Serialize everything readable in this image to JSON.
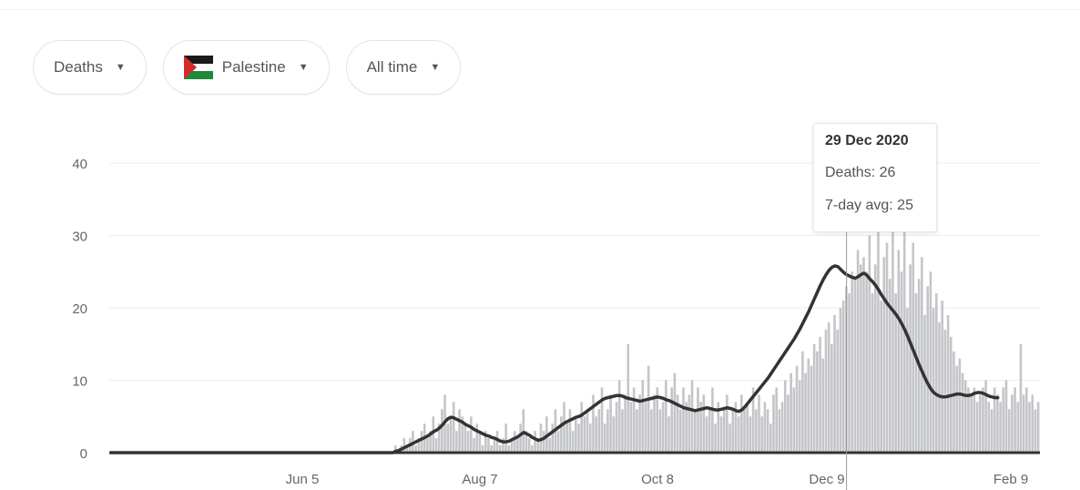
{
  "controls": {
    "metric": "Deaths",
    "location": "Palestine",
    "timerange": "All time"
  },
  "tooltip": {
    "date": "29 Dec 2020",
    "deaths_label": "Deaths:",
    "deaths_value": "26",
    "avg_label": "7-day avg:",
    "avg_value": "25"
  },
  "colors": {
    "bars": "#c4c5c8",
    "line": "#333333",
    "grid": "#eeeeee",
    "cursor": "#9a9a9a"
  },
  "chart_data": {
    "type": "bar",
    "title": "",
    "xlabel": "",
    "ylabel": "",
    "ylim": [
      0,
      45
    ],
    "yticks": [
      0,
      10,
      20,
      30,
      40
    ],
    "xtick_labels": [
      "Jun 5",
      "Aug 7",
      "Oct 8",
      "Dec 9",
      "Feb 9"
    ],
    "grid": true,
    "highlight": {
      "label": "29 Dec 2020",
      "deaths": 26,
      "avg7": 25
    },
    "series": [
      {
        "name": "Deaths",
        "type": "bar",
        "values": [
          0,
          0,
          0,
          0,
          0,
          0,
          0,
          0,
          0,
          0,
          0,
          0,
          0,
          0,
          0,
          0,
          0,
          0,
          0,
          0,
          0,
          0,
          0,
          0,
          0,
          0,
          0,
          0,
          0,
          0,
          0,
          0,
          0,
          0,
          0,
          0,
          0,
          0,
          0,
          0,
          0,
          0,
          0,
          0,
          0,
          0,
          0,
          0,
          0,
          0,
          0,
          0,
          0,
          0,
          0,
          0,
          0,
          0,
          0,
          0,
          0,
          0,
          0,
          0,
          0,
          0,
          0,
          0,
          0,
          0,
          0,
          0,
          0,
          0,
          0,
          0,
          0,
          0,
          0,
          0,
          0,
          0,
          0,
          0,
          0,
          0,
          0,
          0,
          0,
          0,
          0,
          0,
          0,
          0,
          0,
          0,
          0,
          0,
          1,
          0,
          1,
          2,
          1,
          2,
          3,
          1,
          2,
          3,
          4,
          2,
          3,
          5,
          2,
          4,
          6,
          8,
          4,
          5,
          7,
          3,
          6,
          5,
          4,
          3,
          5,
          2,
          4,
          3,
          1,
          3,
          2,
          1,
          2,
          3,
          1,
          2,
          4,
          1,
          2,
          3,
          2,
          4,
          6,
          3,
          2,
          1,
          3,
          2,
          4,
          3,
          5,
          2,
          4,
          6,
          3,
          5,
          7,
          4,
          6,
          3,
          5,
          4,
          7,
          5,
          6,
          4,
          8,
          5,
          6,
          9,
          4,
          6,
          8,
          5,
          7,
          10,
          6,
          8,
          15,
          7,
          9,
          6,
          8,
          10,
          7,
          12,
          6,
          8,
          9,
          6,
          7,
          10,
          5,
          9,
          11,
          8,
          6,
          9,
          7,
          8,
          10,
          6,
          9,
          7,
          8,
          5,
          6,
          9,
          4,
          7,
          5,
          6,
          8,
          4,
          6,
          7,
          5,
          8,
          6,
          7,
          5,
          9,
          6,
          8,
          5,
          7,
          6,
          4,
          8,
          9,
          6,
          7,
          10,
          8,
          11,
          9,
          12,
          10,
          14,
          11,
          13,
          12,
          15,
          14,
          16,
          13,
          17,
          18,
          15,
          19,
          17,
          20,
          21,
          23,
          22,
          25,
          24,
          28,
          26,
          27,
          25,
          30,
          22,
          26,
          32,
          21,
          27,
          29,
          24,
          31,
          22,
          28,
          25,
          33,
          20,
          26,
          29,
          22,
          24,
          27,
          19,
          23,
          25,
          20,
          22,
          18,
          21,
          17,
          19,
          16,
          14,
          12,
          13,
          11,
          10,
          9,
          8,
          9,
          7,
          8,
          9,
          10,
          7,
          6,
          9,
          8,
          7,
          9,
          10,
          6,
          8,
          9,
          7,
          15,
          8,
          9,
          7,
          8,
          6,
          7
        ]
      },
      {
        "name": "7-day avg",
        "type": "line",
        "values": [
          0,
          0,
          0,
          0,
          0,
          0,
          0,
          0,
          0,
          0,
          0,
          0,
          0,
          0,
          0,
          0,
          0,
          0,
          0,
          0,
          0,
          0,
          0,
          0,
          0,
          0,
          0,
          0,
          0,
          0,
          0,
          0,
          0,
          0,
          0,
          0,
          0,
          0,
          0,
          0,
          0,
          0,
          0,
          0,
          0,
          0,
          0,
          0,
          0,
          0,
          0,
          0,
          0,
          0,
          0,
          0,
          0,
          0,
          0,
          0,
          0,
          0,
          0,
          0,
          0,
          0,
          0,
          0,
          0,
          0,
          0,
          0,
          0,
          0,
          0,
          0,
          0,
          0,
          0,
          0,
          0,
          0,
          0,
          0,
          0,
          0,
          0,
          0,
          0,
          0,
          0,
          0,
          0,
          0,
          0,
          0,
          0,
          0,
          0.2,
          0.3,
          0.5,
          0.7,
          0.9,
          1.1,
          1.3,
          1.5,
          1.7,
          1.9,
          2.1,
          2.3,
          2.6,
          2.9,
          3.1,
          3.4,
          3.8,
          4.3,
          4.7,
          4.9,
          4.8,
          4.6,
          4.4,
          4.2,
          3.9,
          3.7,
          3.5,
          3.2,
          3,
          2.8,
          2.6,
          2.4,
          2.3,
          2.1,
          2,
          1.8,
          1.6,
          1.5,
          1.5,
          1.6,
          1.8,
          2,
          2.2,
          2.5,
          2.8,
          2.6,
          2.4,
          2.1,
          1.9,
          1.7,
          1.8,
          2,
          2.3,
          2.6,
          2.9,
          3.2,
          3.5,
          3.8,
          4.1,
          4.3,
          4.5,
          4.7,
          4.9,
          5,
          5.2,
          5.5,
          5.8,
          6.1,
          6.4,
          6.7,
          7,
          7.3,
          7.5,
          7.6,
          7.7,
          7.8,
          7.9,
          7.9,
          7.8,
          7.6,
          7.5,
          7.4,
          7.3,
          7.2,
          7.1,
          7.2,
          7.3,
          7.4,
          7.5,
          7.6,
          7.7,
          7.6,
          7.5,
          7.3,
          7.2,
          7,
          6.8,
          6.6,
          6.4,
          6.2,
          6.1,
          6,
          5.9,
          5.8,
          5.9,
          6,
          6.1,
          6.2,
          6.1,
          6,
          5.9,
          5.9,
          6,
          6.1,
          6.2,
          6.1,
          6,
          5.8,
          5.7,
          5.9,
          6.3,
          6.8,
          7.3,
          7.8,
          8.3,
          8.8,
          9.3,
          9.8,
          10.3,
          10.9,
          11.5,
          12.1,
          12.7,
          13.3,
          13.9,
          14.5,
          15.1,
          15.7,
          16.4,
          17.1,
          17.9,
          18.7,
          19.5,
          20.4,
          21.3,
          22.2,
          23.1,
          23.9,
          24.6,
          25.2,
          25.6,
          25.8,
          25.7,
          25.3,
          24.9,
          24.6,
          24.4,
          24.2,
          24.1,
          24.3,
          24.6,
          24.8,
          24.5,
          24,
          23.6,
          23.1,
          22.5,
          21.8,
          21.2,
          20.6,
          20.1,
          19.6,
          19.1,
          18.5,
          17.8,
          17,
          16.1,
          15.1,
          14.1,
          13.1,
          12.1,
          11.2,
          10.3,
          9.5,
          8.8,
          8.3,
          8,
          7.8,
          7.7,
          7.7,
          7.8,
          7.9,
          8,
          8.1,
          8.1,
          8,
          7.9,
          7.9,
          8,
          8.2,
          8.3,
          8.3,
          8.2,
          8,
          7.8,
          7.7,
          7.6,
          7.6
        ]
      }
    ]
  }
}
